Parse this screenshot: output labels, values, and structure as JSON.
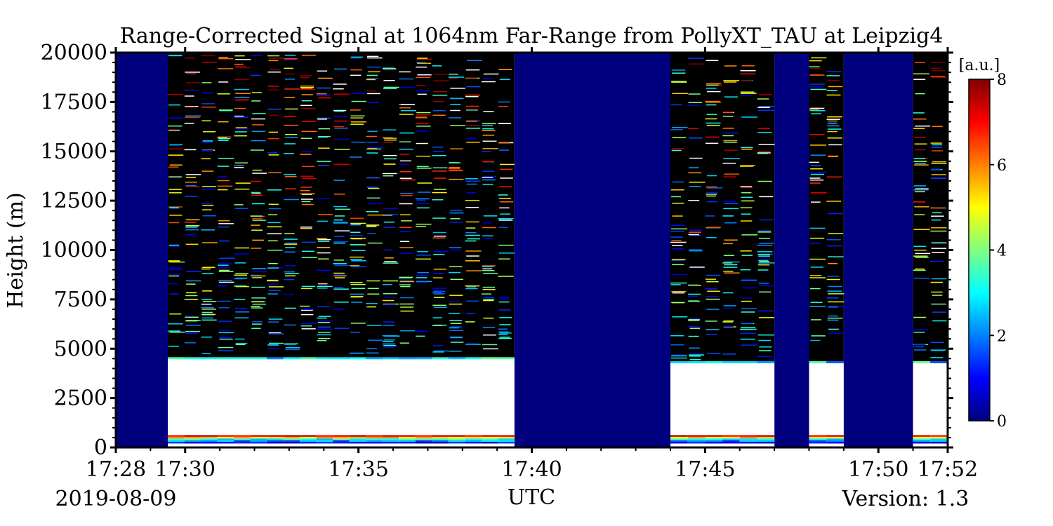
{
  "chart_data": {
    "type": "heatmap",
    "title": "Range-Corrected Signal at 1064nm Far-Range from PollyXT_TAU at Leipzig4",
    "xlabel": "UTC",
    "ylabel": "Height (m)",
    "x_range": [
      "17:28",
      "17:52"
    ],
    "ylim": [
      0,
      20000
    ],
    "x_ticks": [
      "17:28",
      "17:30",
      "17:35",
      "17:40",
      "17:45",
      "17:50",
      "17:52"
    ],
    "y_ticks": [
      "0",
      "2500",
      "5000",
      "7500",
      "10000",
      "12500",
      "15000",
      "17500",
      "20000"
    ],
    "colorbar": {
      "label": "[a.u.]",
      "colormap": "jet",
      "range": [
        0,
        8
      ],
      "ticks": [
        "0",
        "2",
        "4",
        "6",
        "8"
      ]
    },
    "no_data_periods": [
      {
        "start": "17:28:00",
        "end": "17:29:30"
      },
      {
        "start": "17:39:30",
        "end": "17:44:00"
      },
      {
        "start": "17:47:00",
        "end": "17:48:00"
      },
      {
        "start": "17:49:00",
        "end": "17:51:00"
      }
    ],
    "measurement_periods": [
      {
        "start": "17:29:30",
        "end": "17:39:30",
        "saturated_layer_top_m": 4500
      },
      {
        "start": "17:44:00",
        "end": "17:47:00",
        "saturated_layer_top_m": 4300
      },
      {
        "start": "17:48:00",
        "end": "17:49:00",
        "saturated_layer_top_m": 4300
      },
      {
        "start": "17:51:00",
        "end": "17:52:00",
        "saturated_layer_top_m": 4300
      }
    ],
    "colors": {
      "no_data": "#00007f",
      "background": "#000000",
      "saturated": "#ffffff"
    }
  },
  "footer": {
    "date": "2019-08-09",
    "version": "Version: 1.3"
  }
}
